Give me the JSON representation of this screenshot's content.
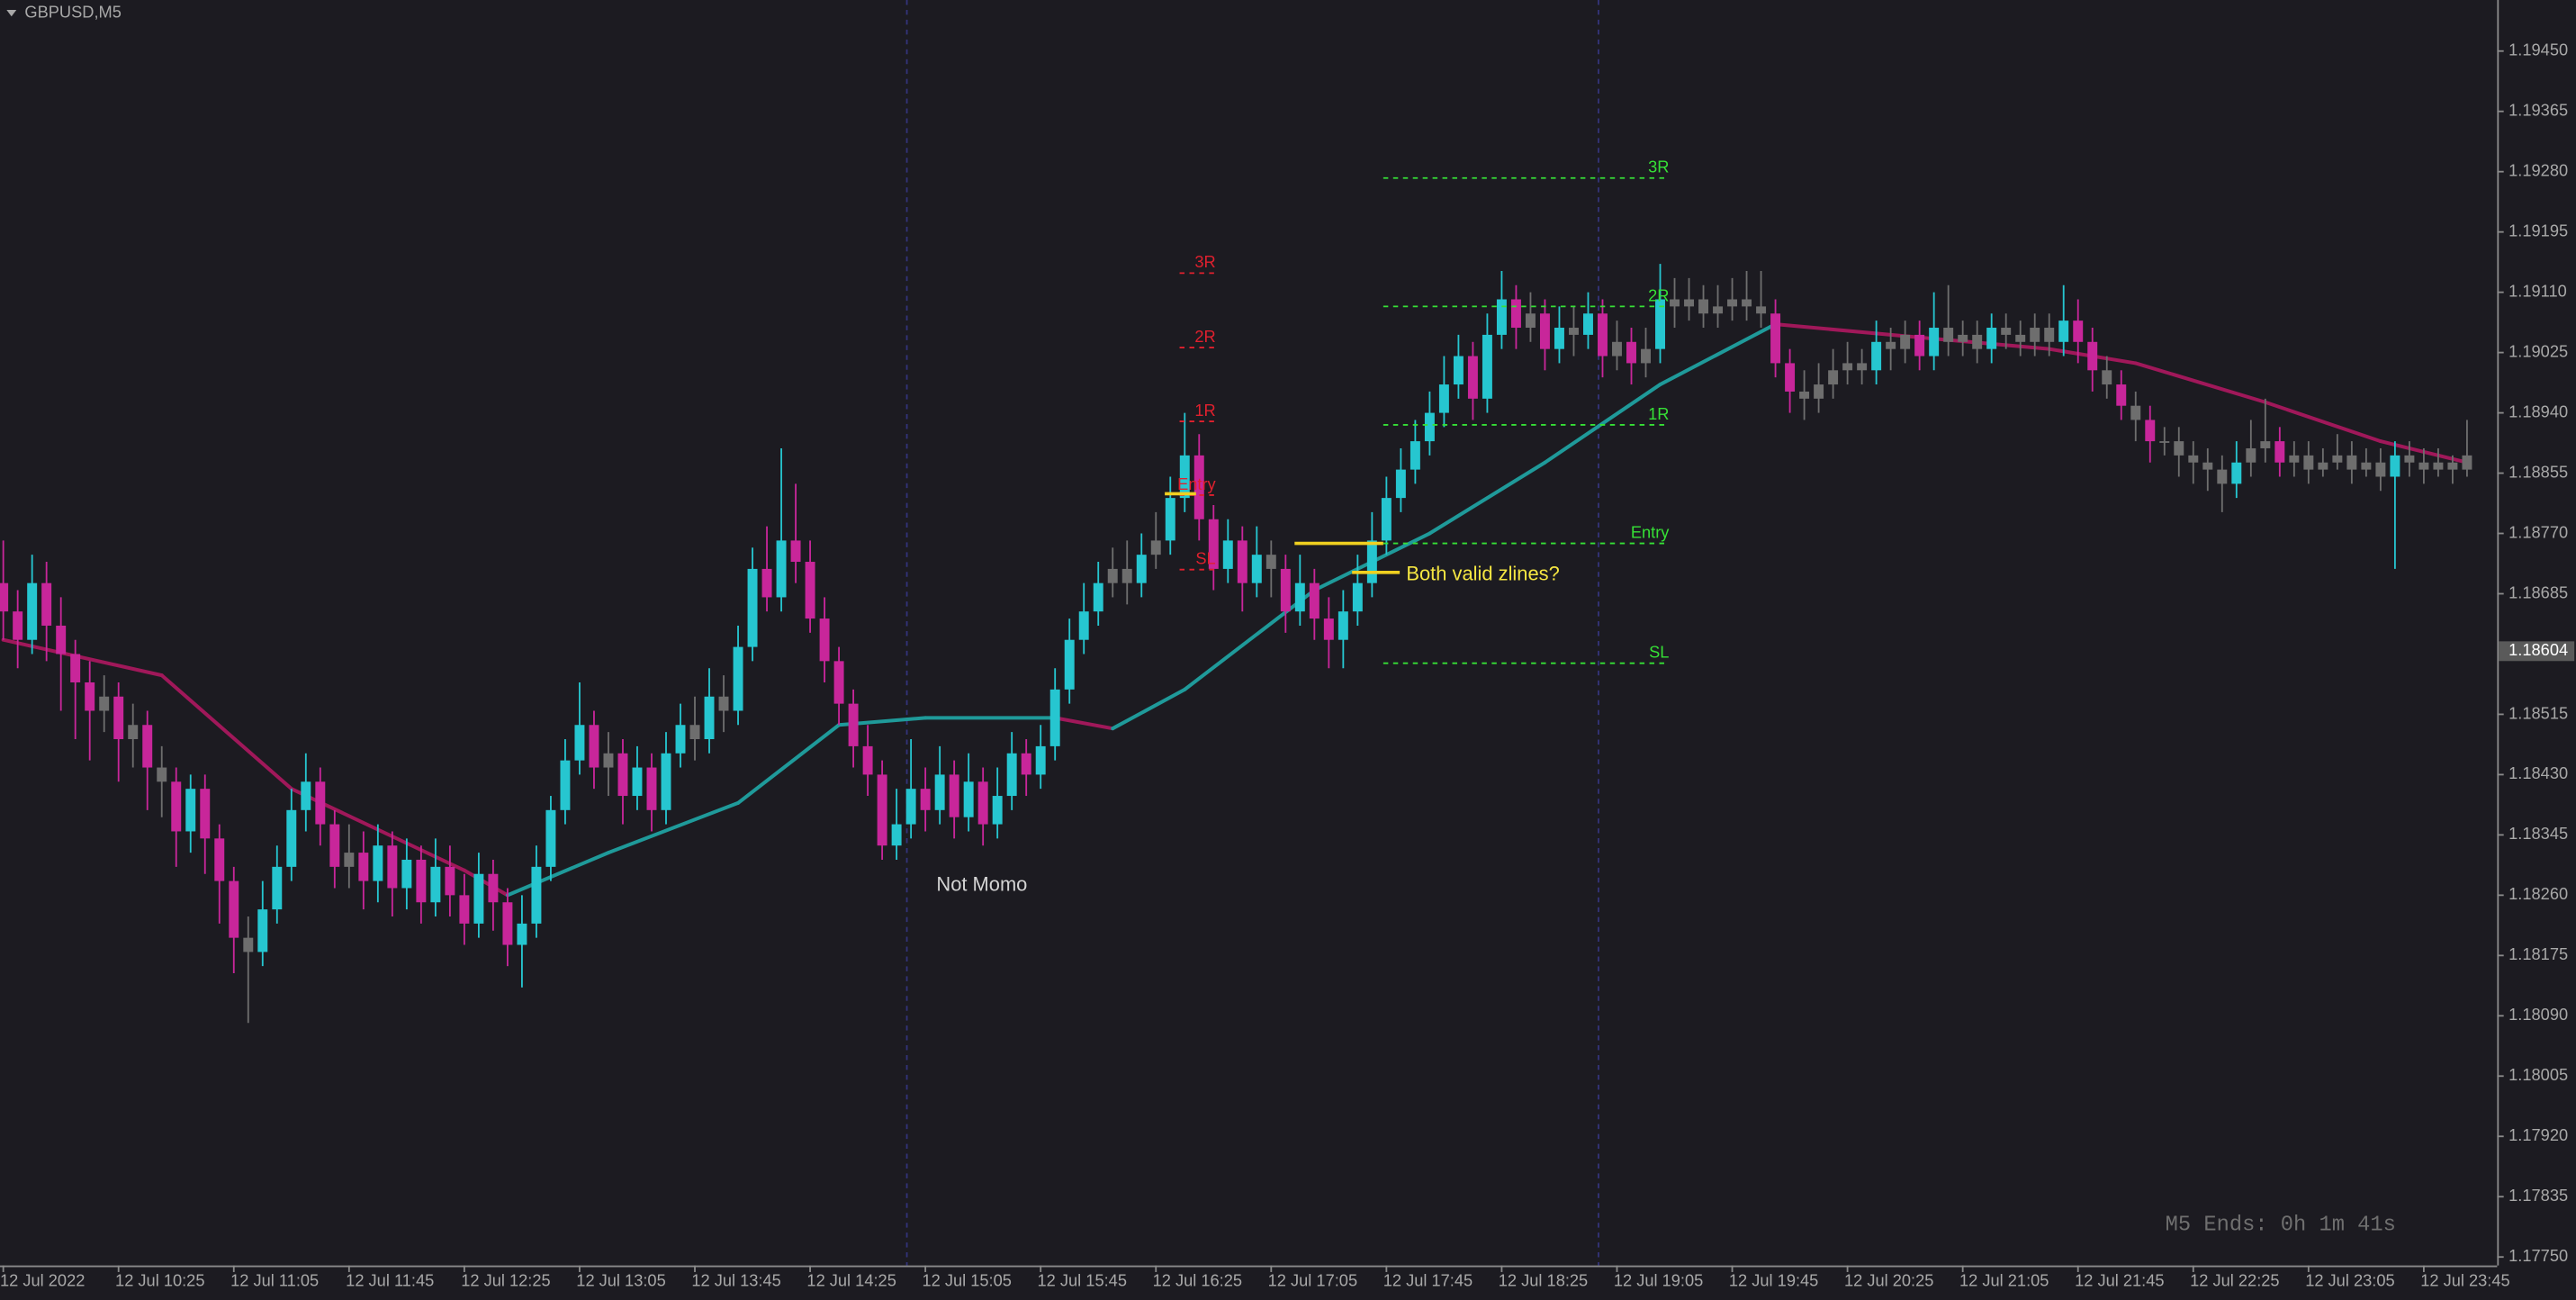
{
  "chart_data": {
    "type": "candlestick",
    "title": "GBPUSD,M5",
    "colors": {
      "up": "#26c6d0",
      "down": "#c8269a",
      "neutral": "#6e6e6e",
      "ma_up": "#1f9a9a",
      "ma_down": "#a0185a"
    },
    "ylim": [
      1.17738,
      1.19522
    ],
    "yticks": [
      {
        "value": 1.1945,
        "label": "1.19450"
      },
      1.19365,
      {
        "value": 1.1928,
        "label": "1.19280"
      },
      1.19195,
      {
        "value": 1.1911,
        "label": "1.19110"
      },
      1.19025,
      {
        "value": 1.1894,
        "label": "1.18940"
      },
      1.18855,
      {
        "value": 1.1877,
        "label": "1.18770"
      },
      1.18685,
      1.18515,
      {
        "value": 1.1843,
        "label": "1.18430"
      },
      1.18345,
      {
        "value": 1.1826,
        "label": "1.18260"
      },
      1.18175,
      {
        "value": 1.1809,
        "label": "1.18090"
      },
      1.18005,
      {
        "value": 1.1792,
        "label": "1.17920"
      },
      1.17835,
      {
        "value": 1.1775,
        "label": "1.17750"
      }
    ],
    "bid": 1.18604,
    "xticks": [
      {
        "value": 0,
        "label": "12 Jul 2022"
      },
      {
        "value": 8,
        "label": "12 Jul 10:25"
      },
      {
        "value": 16,
        "label": "12 Jul 11:05"
      },
      {
        "value": 24,
        "label": "12 Jul 11:45"
      },
      {
        "value": 32,
        "label": "12 Jul 12:25"
      },
      {
        "value": 40,
        "label": "12 Jul 13:05"
      },
      {
        "value": 48,
        "label": "12 Jul 13:45"
      },
      {
        "value": 56,
        "label": "12 Jul 14:25"
      },
      {
        "value": 64,
        "label": "12 Jul 15:05"
      },
      {
        "value": 72,
        "label": "12 Jul 15:45"
      },
      {
        "value": 80,
        "label": "12 Jul 16:25"
      },
      {
        "value": 88,
        "label": "12 Jul 17:05"
      },
      {
        "value": 96,
        "label": "12 Jul 17:45"
      },
      {
        "value": 104,
        "label": "12 Jul 18:25"
      },
      {
        "value": 112,
        "label": "12 Jul 19:05"
      },
      {
        "value": 120,
        "label": "12 Jul 19:45"
      },
      {
        "value": 128,
        "label": "12 Jul 20:25"
      },
      {
        "value": 136,
        "label": "12 Jul 21:05"
      },
      {
        "value": 144,
        "label": "12 Jul 21:45"
      },
      {
        "value": 152,
        "label": "12 Jul 22:25"
      },
      {
        "value": 160,
        "label": "12 Jul 23:05"
      },
      {
        "value": 168,
        "label": "12 Jul 23:45"
      }
    ],
    "candles": [
      [
        1.187,
        1.1876,
        1.1862,
        1.1866
      ],
      [
        1.1866,
        1.1869,
        1.1858,
        1.1862
      ],
      [
        1.1862,
        1.1874,
        1.186,
        1.187
      ],
      [
        1.187,
        1.1873,
        1.1859,
        1.1864
      ],
      [
        1.1864,
        1.1868,
        1.1852,
        1.186
      ],
      [
        1.186,
        1.1862,
        1.1848,
        1.1856
      ],
      [
        1.1856,
        1.1859,
        1.1845,
        1.1852
      ],
      [
        1.1852,
        1.1857,
        1.1849,
        1.1854
      ],
      [
        1.1854,
        1.1856,
        1.1842,
        1.1848
      ],
      [
        1.1848,
        1.1853,
        1.1844,
        1.185
      ],
      [
        1.185,
        1.1852,
        1.1838,
        1.1844
      ],
      [
        1.1844,
        1.1847,
        1.1837,
        1.1842
      ],
      [
        1.1842,
        1.1844,
        1.183,
        1.1835
      ],
      [
        1.1835,
        1.1843,
        1.1832,
        1.1841
      ],
      [
        1.1841,
        1.1843,
        1.1829,
        1.1834
      ],
      [
        1.1834,
        1.1836,
        1.1822,
        1.1828
      ],
      [
        1.1828,
        1.183,
        1.1815,
        1.182
      ],
      [
        1.182,
        1.1823,
        1.1808,
        1.1818
      ],
      [
        1.1818,
        1.1828,
        1.1816,
        1.1824
      ],
      [
        1.1824,
        1.1833,
        1.1822,
        1.183
      ],
      [
        1.183,
        1.1841,
        1.1828,
        1.1838
      ],
      [
        1.1838,
        1.1846,
        1.1835,
        1.1842
      ],
      [
        1.1842,
        1.1844,
        1.1833,
        1.1836
      ],
      [
        1.1836,
        1.1838,
        1.1827,
        1.183
      ],
      [
        1.183,
        1.1836,
        1.1827,
        1.1832
      ],
      [
        1.1832,
        1.1835,
        1.1824,
        1.1828
      ],
      [
        1.1828,
        1.1836,
        1.1825,
        1.1833
      ],
      [
        1.1833,
        1.1835,
        1.1823,
        1.1827
      ],
      [
        1.1827,
        1.1834,
        1.1824,
        1.1831
      ],
      [
        1.1831,
        1.1833,
        1.1822,
        1.1825
      ],
      [
        1.1825,
        1.1834,
        1.1823,
        1.183
      ],
      [
        1.183,
        1.1833,
        1.1823,
        1.1826
      ],
      [
        1.1826,
        1.1829,
        1.1819,
        1.1822
      ],
      [
        1.1822,
        1.1832,
        1.182,
        1.1829
      ],
      [
        1.1829,
        1.1831,
        1.1821,
        1.1825
      ],
      [
        1.1825,
        1.1827,
        1.1816,
        1.1819
      ],
      [
        1.1819,
        1.1826,
        1.1813,
        1.1822
      ],
      [
        1.1822,
        1.1833,
        1.182,
        1.183
      ],
      [
        1.183,
        1.184,
        1.1828,
        1.1838
      ],
      [
        1.1838,
        1.1848,
        1.1836,
        1.1845
      ],
      [
        1.1845,
        1.1856,
        1.1843,
        1.185
      ],
      [
        1.185,
        1.1852,
        1.1841,
        1.1844
      ],
      [
        1.1844,
        1.1849,
        1.184,
        1.1846
      ],
      [
        1.1846,
        1.1848,
        1.1836,
        1.184
      ],
      [
        1.184,
        1.1847,
        1.1838,
        1.1844
      ],
      [
        1.1844,
        1.1846,
        1.1835,
        1.1838
      ],
      [
        1.1838,
        1.1849,
        1.1836,
        1.1846
      ],
      [
        1.1846,
        1.1853,
        1.1844,
        1.185
      ],
      [
        1.185,
        1.1854,
        1.1845,
        1.1848
      ],
      [
        1.1848,
        1.1858,
        1.1846,
        1.1854
      ],
      [
        1.1854,
        1.1857,
        1.1849,
        1.1852
      ],
      [
        1.1852,
        1.1864,
        1.185,
        1.1861
      ],
      [
        1.1861,
        1.1875,
        1.1859,
        1.1872
      ],
      [
        1.1872,
        1.1878,
        1.1866,
        1.1868
      ],
      [
        1.1868,
        1.1889,
        1.1866,
        1.1876
      ],
      [
        1.1876,
        1.1884,
        1.187,
        1.1873
      ],
      [
        1.1873,
        1.1876,
        1.1863,
        1.1865
      ],
      [
        1.1865,
        1.1868,
        1.1856,
        1.1859
      ],
      [
        1.1859,
        1.1861,
        1.185,
        1.1853
      ],
      [
        1.1853,
        1.1855,
        1.1844,
        1.1847
      ],
      [
        1.1847,
        1.185,
        1.184,
        1.1843
      ],
      [
        1.1843,
        1.1845,
        1.1831,
        1.1833
      ],
      [
        1.1833,
        1.1841,
        1.1831,
        1.1836
      ],
      [
        1.1836,
        1.1848,
        1.1834,
        1.1841
      ],
      [
        1.1841,
        1.1844,
        1.1835,
        1.1838
      ],
      [
        1.1838,
        1.1847,
        1.1836,
        1.1843
      ],
      [
        1.1843,
        1.1845,
        1.1834,
        1.1837
      ],
      [
        1.1837,
        1.1846,
        1.1835,
        1.1842
      ],
      [
        1.1842,
        1.1844,
        1.1833,
        1.1836
      ],
      [
        1.1836,
        1.1844,
        1.1834,
        1.184
      ],
      [
        1.184,
        1.1849,
        1.1838,
        1.1846
      ],
      [
        1.1846,
        1.1848,
        1.184,
        1.1843
      ],
      [
        1.1843,
        1.185,
        1.1841,
        1.1847
      ],
      [
        1.1847,
        1.1858,
        1.1845,
        1.1855
      ],
      [
        1.1855,
        1.1865,
        1.1853,
        1.1862
      ],
      [
        1.1862,
        1.187,
        1.186,
        1.1866
      ],
      [
        1.1866,
        1.1873,
        1.1864,
        1.187
      ],
      [
        1.187,
        1.1875,
        1.1868,
        1.1872
      ],
      [
        1.1872,
        1.1876,
        1.1867,
        1.187
      ],
      [
        1.187,
        1.1877,
        1.1868,
        1.1874
      ],
      [
        1.1874,
        1.188,
        1.1872,
        1.1876
      ],
      [
        1.1876,
        1.1885,
        1.1874,
        1.1882
      ],
      [
        1.1882,
        1.1894,
        1.188,
        1.1888
      ],
      [
        1.1888,
        1.1891,
        1.1876,
        1.1879
      ],
      [
        1.1879,
        1.1881,
        1.1869,
        1.1872
      ],
      [
        1.1872,
        1.1879,
        1.187,
        1.1876
      ],
      [
        1.1876,
        1.1878,
        1.1866,
        1.187
      ],
      [
        1.187,
        1.1878,
        1.1868,
        1.1874
      ],
      [
        1.1874,
        1.1876,
        1.1868,
        1.1872
      ],
      [
        1.1872,
        1.1874,
        1.1863,
        1.1866
      ],
      [
        1.1866,
        1.1874,
        1.1864,
        1.187
      ],
      [
        1.187,
        1.1872,
        1.1862,
        1.1865
      ],
      [
        1.1865,
        1.1868,
        1.1858,
        1.1862
      ],
      [
        1.1862,
        1.1869,
        1.1858,
        1.1866
      ],
      [
        1.1866,
        1.1874,
        1.1864,
        1.187
      ],
      [
        1.187,
        1.188,
        1.1868,
        1.1876
      ],
      [
        1.1876,
        1.1885,
        1.1874,
        1.1882
      ],
      [
        1.1882,
        1.1889,
        1.188,
        1.1886
      ],
      [
        1.1886,
        1.1893,
        1.1884,
        1.189
      ],
      [
        1.189,
        1.1897,
        1.1888,
        1.1894
      ],
      [
        1.1894,
        1.1902,
        1.1892,
        1.1898
      ],
      [
        1.1898,
        1.1905,
        1.1896,
        1.1902
      ],
      [
        1.1902,
        1.1904,
        1.1893,
        1.1896
      ],
      [
        1.1896,
        1.1908,
        1.1894,
        1.1905
      ],
      [
        1.1905,
        1.1914,
        1.1903,
        1.191
      ],
      [
        1.191,
        1.1912,
        1.1903,
        1.1906
      ],
      [
        1.1906,
        1.1911,
        1.1904,
        1.1908
      ],
      [
        1.1908,
        1.191,
        1.19,
        1.1903
      ],
      [
        1.1903,
        1.1909,
        1.1901,
        1.1906
      ],
      [
        1.1906,
        1.1909,
        1.1902,
        1.1905
      ],
      [
        1.1905,
        1.1911,
        1.1903,
        1.1908
      ],
      [
        1.1908,
        1.191,
        1.1899,
        1.1902
      ],
      [
        1.1902,
        1.1907,
        1.19,
        1.1904
      ],
      [
        1.1904,
        1.1906,
        1.1898,
        1.1901
      ],
      [
        1.1901,
        1.1906,
        1.1899,
        1.1903
      ],
      [
        1.1903,
        1.1915,
        1.1901,
        1.191
      ],
      [
        1.191,
        1.1913,
        1.1906,
        1.1909
      ],
      [
        1.1909,
        1.1913,
        1.1907,
        1.191
      ],
      [
        1.191,
        1.1912,
        1.1906,
        1.1908
      ],
      [
        1.1908,
        1.1912,
        1.1906,
        1.1909
      ],
      [
        1.1909,
        1.1913,
        1.1907,
        1.191
      ],
      [
        1.191,
        1.1914,
        1.1907,
        1.1909
      ],
      [
        1.1909,
        1.1914,
        1.1906,
        1.1908
      ],
      [
        1.1908,
        1.191,
        1.1899,
        1.1901
      ],
      [
        1.1901,
        1.1903,
        1.1894,
        1.1897
      ],
      [
        1.1897,
        1.19,
        1.1893,
        1.1896
      ],
      [
        1.1896,
        1.1901,
        1.1894,
        1.1898
      ],
      [
        1.1898,
        1.1903,
        1.1896,
        1.19
      ],
      [
        1.19,
        1.1904,
        1.1898,
        1.1901
      ],
      [
        1.1901,
        1.1903,
        1.1898,
        1.19
      ],
      [
        1.19,
        1.1907,
        1.1898,
        1.1904
      ],
      [
        1.1904,
        1.1906,
        1.19,
        1.1903
      ],
      [
        1.1903,
        1.1907,
        1.1901,
        1.1905
      ],
      [
        1.1905,
        1.1907,
        1.19,
        1.1902
      ],
      [
        1.1902,
        1.1911,
        1.19,
        1.1906
      ],
      [
        1.1906,
        1.1912,
        1.1902,
        1.1904
      ],
      [
        1.1904,
        1.1907,
        1.1902,
        1.1905
      ],
      [
        1.1905,
        1.1907,
        1.1901,
        1.1903
      ],
      [
        1.1903,
        1.1908,
        1.1901,
        1.1906
      ],
      [
        1.1906,
        1.1908,
        1.1903,
        1.1905
      ],
      [
        1.1905,
        1.1907,
        1.1902,
        1.1904
      ],
      [
        1.1904,
        1.1908,
        1.1902,
        1.1906
      ],
      [
        1.1906,
        1.1908,
        1.1902,
        1.1904
      ],
      [
        1.1904,
        1.1912,
        1.1902,
        1.1907
      ],
      [
        1.1907,
        1.191,
        1.1901,
        1.1904
      ],
      [
        1.1904,
        1.1906,
        1.1897,
        1.19
      ],
      [
        1.19,
        1.1902,
        1.1896,
        1.1898
      ],
      [
        1.1898,
        1.19,
        1.1893,
        1.1895
      ],
      [
        1.1895,
        1.1897,
        1.189,
        1.1893
      ],
      [
        1.1893,
        1.1895,
        1.1887,
        1.189
      ],
      [
        1.189,
        1.1892,
        1.1888,
        1.189
      ],
      [
        1.189,
        1.1892,
        1.1885,
        1.1888
      ],
      [
        1.1888,
        1.189,
        1.1884,
        1.1887
      ],
      [
        1.1887,
        1.1889,
        1.1883,
        1.1886
      ],
      [
        1.1886,
        1.1888,
        1.188,
        1.1884
      ],
      [
        1.1884,
        1.189,
        1.1882,
        1.1887
      ],
      [
        1.1887,
        1.1893,
        1.1885,
        1.1889
      ],
      [
        1.1889,
        1.1896,
        1.1887,
        1.189
      ],
      [
        1.189,
        1.1892,
        1.1885,
        1.1887
      ],
      [
        1.1887,
        1.189,
        1.1885,
        1.1888
      ],
      [
        1.1888,
        1.189,
        1.1884,
        1.1886
      ],
      [
        1.1886,
        1.1889,
        1.1885,
        1.1887
      ],
      [
        1.1887,
        1.1891,
        1.1886,
        1.1888
      ],
      [
        1.1888,
        1.189,
        1.1884,
        1.1886
      ],
      [
        1.1886,
        1.1889,
        1.1885,
        1.1887
      ],
      [
        1.1887,
        1.1889,
        1.1883,
        1.1885
      ],
      [
        1.1885,
        1.189,
        1.1872,
        1.1888
      ],
      [
        1.1888,
        1.189,
        1.1885,
        1.1887
      ],
      [
        1.1887,
        1.1889,
        1.1884,
        1.1886
      ],
      [
        1.1886,
        1.1889,
        1.1885,
        1.1887
      ],
      [
        1.1887,
        1.1888,
        1.1884,
        1.1886
      ],
      [
        1.1886,
        1.1893,
        1.1885,
        1.1888
      ]
    ],
    "ma": {
      "x": [
        0,
        11,
        20,
        32,
        35,
        42,
        51,
        58,
        64,
        73,
        77,
        82,
        91,
        99,
        107,
        115,
        123,
        131,
        142,
        148,
        157,
        165,
        171
      ],
      "values": [
        1.1862,
        1.1857,
        1.1841,
        1.18295,
        1.1826,
        1.1832,
        1.1839,
        1.185,
        1.1851,
        1.1851,
        1.18495,
        1.1855,
        1.1869,
        1.1877,
        1.1887,
        1.1898,
        1.19065,
        1.1905,
        1.1903,
        1.1901,
        1.18955,
        1.189,
        1.1887
      ]
    },
    "levels": [
      {
        "color": "#e0202e",
        "items": [
          {
            "label": "3R",
            "value": 1.19137
          },
          {
            "label": "2R",
            "value": 1.19032
          },
          {
            "label": "1R",
            "value": 1.18928
          },
          {
            "label": "Entry",
            "value": 1.18824
          },
          {
            "label": "SL",
            "value": 1.18719
          }
        ]
      },
      {
        "color": "#36e036",
        "items": [
          {
            "label": "3R",
            "value": 1.19271
          },
          {
            "label": "2R",
            "value": 1.1909
          },
          {
            "label": "1R",
            "value": 1.18923
          },
          {
            "label": "Entry",
            "value": 1.18756
          },
          {
            "label": "SL",
            "value": 1.18587
          }
        ]
      }
    ],
    "zlines": {
      "color": "#f0d020",
      "values": [
        1.18826,
        1.18756,
        1.18715
      ]
    },
    "annotations": [
      {
        "text": "Not Momo",
        "color": "#d4d4d4"
      },
      {
        "text": "Both valid zlines?",
        "color": "#f5e642"
      }
    ],
    "timer": "M5 Ends: 0h 1m 41s"
  }
}
